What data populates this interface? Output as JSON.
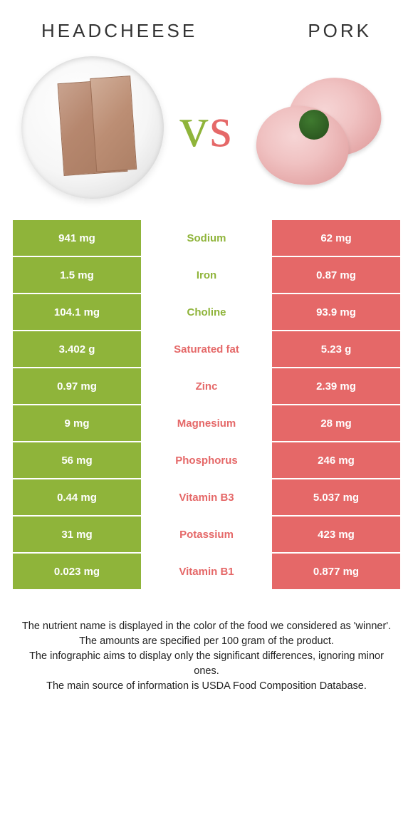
{
  "titles": {
    "left": "HEADCHEESE",
    "right": "PORK"
  },
  "vs": {
    "text": "vs",
    "color_left": "#8fb43a",
    "color_right": "#e56868"
  },
  "colors": {
    "left_bg": "#8fb43a",
    "right_bg": "#e56868",
    "left_text": "#ffffff",
    "right_text": "#ffffff",
    "label_winner_left": "#8fb43a",
    "label_winner_right": "#e56868"
  },
  "rows": [
    {
      "label": "Sodium",
      "left": "941 mg",
      "right": "62 mg",
      "winner": "left"
    },
    {
      "label": "Iron",
      "left": "1.5 mg",
      "right": "0.87 mg",
      "winner": "left"
    },
    {
      "label": "Choline",
      "left": "104.1 mg",
      "right": "93.9 mg",
      "winner": "left"
    },
    {
      "label": "Saturated fat",
      "left": "3.402 g",
      "right": "5.23 g",
      "winner": "right"
    },
    {
      "label": "Zinc",
      "left": "0.97 mg",
      "right": "2.39 mg",
      "winner": "right"
    },
    {
      "label": "Magnesium",
      "left": "9 mg",
      "right": "28 mg",
      "winner": "right"
    },
    {
      "label": "Phosphorus",
      "left": "56 mg",
      "right": "246 mg",
      "winner": "right"
    },
    {
      "label": "Vitamin B3",
      "left": "0.44 mg",
      "right": "5.037 mg",
      "winner": "right"
    },
    {
      "label": "Potassium",
      "left": "31 mg",
      "right": "423 mg",
      "winner": "right"
    },
    {
      "label": "Vitamin B1",
      "left": "0.023 mg",
      "right": "0.877 mg",
      "winner": "right"
    }
  ],
  "footnotes": [
    "The nutrient name is displayed in the color of the food we considered as 'winner'.",
    "The amounts are specified per 100 gram of the product.",
    "The infographic aims to display only the significant differences, ignoring minor ones.",
    "The main source of information is USDA Food Composition Database."
  ]
}
